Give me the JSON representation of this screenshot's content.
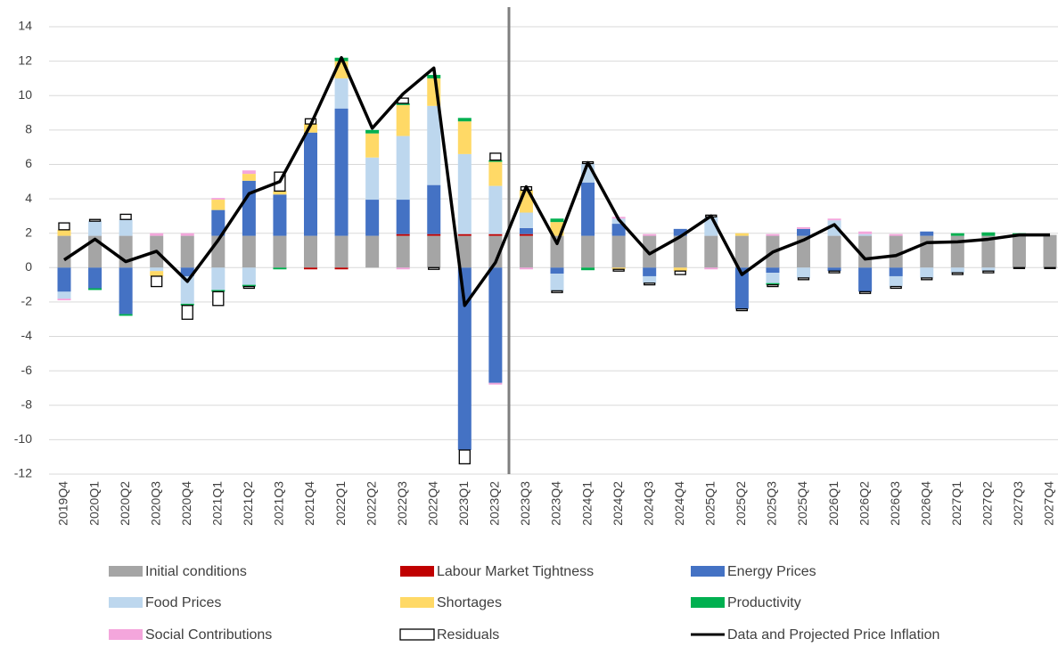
{
  "chart_data": {
    "type": "bar",
    "stacked": true,
    "categories": [
      "2019Q4",
      "2020Q1",
      "2020Q2",
      "2020Q3",
      "2020Q4",
      "2021Q1",
      "2021Q2",
      "2021Q3",
      "2021Q4",
      "2022Q1",
      "2022Q2",
      "2022Q3",
      "2022Q4",
      "2023Q1",
      "2023Q2",
      "2023Q3",
      "2023Q4",
      "2024Q1",
      "2024Q2",
      "2024Q3",
      "2024Q4",
      "2025Q1",
      "2025Q2",
      "2025Q3",
      "2025Q4",
      "2026Q1",
      "2026Q2",
      "2026Q3",
      "2026Q4",
      "2027Q1",
      "2027Q2",
      "2027Q3",
      "2027Q4"
    ],
    "ylim": [
      -12,
      14
    ],
    "yticks": [
      -12,
      -10,
      -8,
      -6,
      -4,
      -2,
      0,
      2,
      4,
      6,
      8,
      10,
      12,
      14
    ],
    "grid": true,
    "series": [
      {
        "name": "Initial conditions",
        "color": "#a5a5a5",
        "values": [
          1.85,
          1.85,
          1.85,
          1.85,
          1.85,
          1.85,
          1.85,
          1.85,
          1.85,
          1.85,
          1.85,
          1.85,
          1.85,
          1.85,
          1.85,
          1.85,
          1.85,
          1.85,
          1.85,
          1.85,
          1.85,
          1.85,
          1.85,
          1.85,
          1.85,
          1.85,
          1.85,
          1.85,
          1.85,
          1.85,
          1.85,
          1.9,
          1.9
        ]
      },
      {
        "name": "Labour Market Tightness",
        "color": "#c00000",
        "values": [
          0,
          0,
          0,
          0,
          0,
          0,
          0,
          0,
          -0.1,
          -0.1,
          0,
          0.1,
          0.1,
          0.1,
          0.1,
          0.1,
          0,
          0,
          0,
          0,
          0,
          0,
          0,
          0,
          0,
          0,
          0,
          0,
          0,
          0,
          0,
          0,
          0
        ]
      },
      {
        "name": "Energy Prices",
        "color": "#4472c4",
        "values": [
          -1.4,
          -1.2,
          -2.7,
          0,
          -0.5,
          1.5,
          3.2,
          2.4,
          6.0,
          7.4,
          2.1,
          2.0,
          2.85,
          -10.6,
          -6.7,
          0.35,
          -0.35,
          3.1,
          0.7,
          -0.5,
          0.4,
          0,
          -2.4,
          -0.3,
          0.4,
          -0.2,
          -1.4,
          -0.5,
          0.25,
          0,
          0,
          0,
          0
        ]
      },
      {
        "name": "Food Prices",
        "color": "#bdd7ee",
        "values": [
          -0.4,
          0.85,
          0.95,
          -0.2,
          -1.6,
          -1.3,
          -1.0,
          0,
          0,
          1.75,
          2.45,
          3.7,
          4.6,
          4.65,
          2.8,
          0.9,
          -1.0,
          1.1,
          0.3,
          -0.4,
          0,
          1.1,
          0,
          -0.6,
          -0.6,
          0.9,
          0.1,
          -0.6,
          -0.6,
          -0.3,
          -0.2,
          0,
          0
        ]
      },
      {
        "name": "Shortages",
        "color": "#ffd966",
        "values": [
          0.35,
          0,
          0,
          -0.3,
          0,
          0.6,
          0.4,
          0.2,
          0.5,
          1.0,
          1.4,
          1.8,
          1.6,
          1.9,
          1.4,
          1.3,
          0.8,
          0,
          -0.1,
          0,
          -0.2,
          0,
          0.15,
          0,
          0,
          0,
          0,
          0,
          0,
          0,
          0,
          0,
          0
        ]
      },
      {
        "name": "Productivity",
        "color": "#00b050",
        "values": [
          0,
          -0.1,
          -0.1,
          0,
          -0.1,
          -0.1,
          -0.1,
          -0.1,
          0,
          0.2,
          0.2,
          0.1,
          0.2,
          0.2,
          0.1,
          0,
          0.2,
          -0.15,
          0,
          0,
          0,
          0,
          0,
          -0.1,
          0,
          0,
          0,
          0,
          0,
          0.15,
          0.2,
          0.1,
          0
        ]
      },
      {
        "name": "Social Contributions",
        "color": "#f4a6dc",
        "values": [
          -0.1,
          0,
          0,
          0.15,
          0.15,
          0.1,
          0.2,
          0,
          0,
          0,
          0,
          -0.1,
          0,
          0,
          -0.1,
          -0.1,
          0,
          0,
          0.1,
          0.1,
          0,
          -0.1,
          0,
          0.1,
          0.1,
          0.1,
          0.15,
          0.1,
          0,
          0,
          0,
          0,
          0
        ]
      },
      {
        "name": "Residuals",
        "color": "#ffffff",
        "border": "#000000",
        "values": [
          0.4,
          0.1,
          0.3,
          -0.6,
          -0.8,
          -0.8,
          -0.1,
          1.1,
          0.3,
          0,
          0,
          0.3,
          -0.1,
          -0.8,
          0.4,
          0.2,
          -0.1,
          0.1,
          -0.1,
          -0.1,
          -0.2,
          0.1,
          -0.1,
          -0.1,
          -0.1,
          -0.1,
          -0.1,
          -0.1,
          -0.1,
          -0.1,
          -0.1,
          -0.05,
          -0.05
        ]
      },
      {
        "name": "Data and Projected Price Inflation",
        "type": "line",
        "color": "#000000",
        "values": [
          0.45,
          1.65,
          0.35,
          0.95,
          -0.8,
          1.6,
          4.3,
          5.0,
          8.3,
          12.2,
          8.1,
          10.1,
          11.6,
          -2.2,
          0.3,
          4.7,
          1.4,
          6.1,
          2.8,
          0.8,
          1.8,
          3.0,
          -0.4,
          0.9,
          1.6,
          2.5,
          0.5,
          0.7,
          1.45,
          1.5,
          1.65,
          1.9,
          1.9
        ]
      }
    ]
  }
}
